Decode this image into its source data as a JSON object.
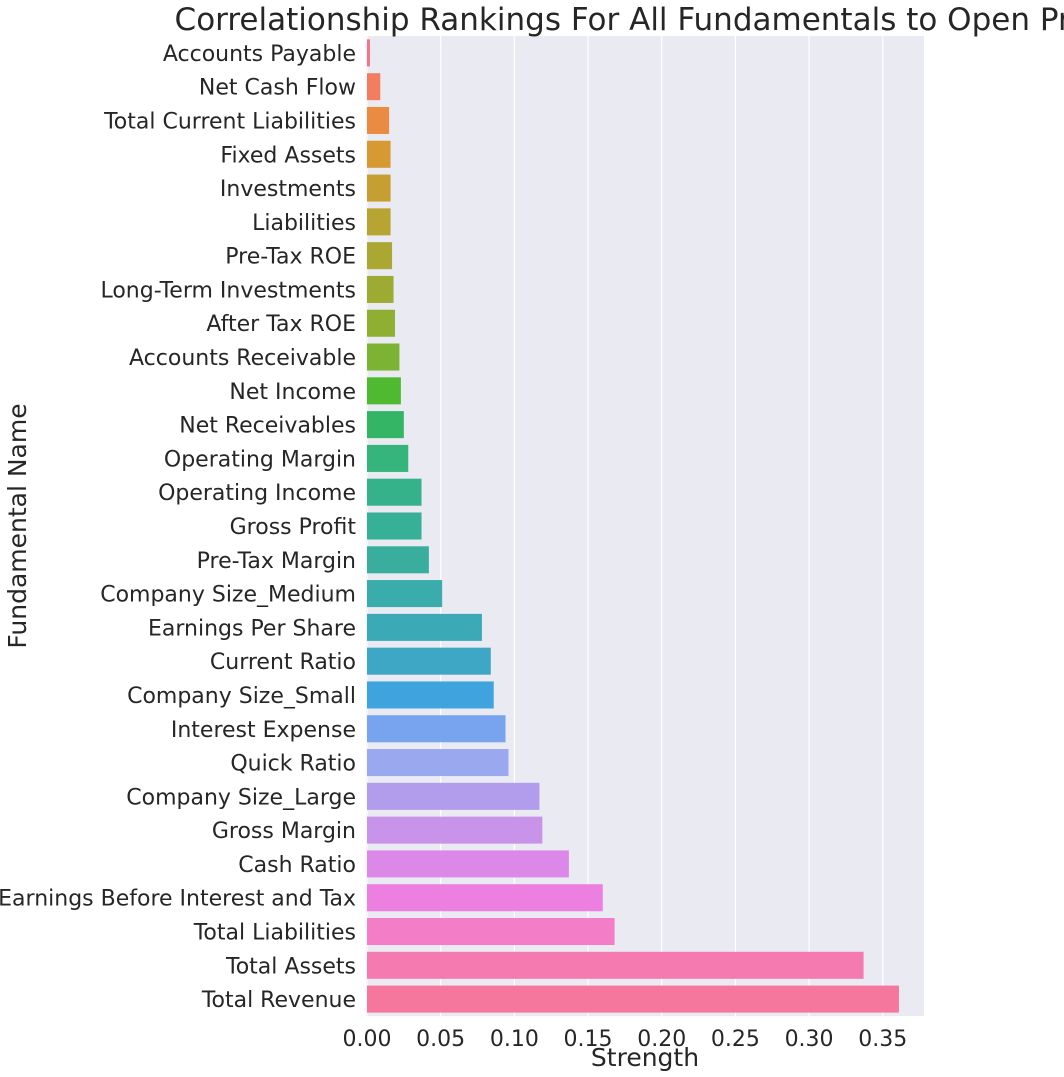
{
  "chart_data": {
    "type": "bar",
    "orientation": "horizontal",
    "title": "Correlationship Rankings For All Fundamentals to Open Price",
    "xlabel": "Strength",
    "ylabel": "Fundamental Name",
    "xlim": [
      0,
      0.378
    ],
    "xticks": [
      "0.00",
      "0.05",
      "0.10",
      "0.15",
      "0.20",
      "0.25",
      "0.30",
      "0.35"
    ],
    "grid": true,
    "categories": [
      "Accounts Payable",
      "Net Cash Flow",
      "Total Current Liabilities",
      "Fixed Assets",
      "Investments",
      "Liabilities",
      "Pre-Tax ROE",
      "Long-Term Investments",
      "After Tax ROE",
      "Accounts Receivable",
      "Net Income",
      "Net Receivables",
      "Operating Margin",
      "Operating Income",
      "Gross Profit",
      "Pre-Tax Margin",
      "Company Size_Medium",
      "Earnings Per Share",
      "Current Ratio",
      "Company Size_Small",
      "Interest Expense",
      "Quick Ratio",
      "Company Size_Large",
      "Gross Margin",
      "Cash Ratio",
      "Earnings Before Interest and Tax",
      "Total Liabilities",
      "Total Assets",
      "Total Revenue"
    ],
    "values": [
      0.002,
      0.009,
      0.015,
      0.016,
      0.016,
      0.016,
      0.017,
      0.018,
      0.019,
      0.022,
      0.023,
      0.025,
      0.028,
      0.037,
      0.037,
      0.042,
      0.051,
      0.078,
      0.084,
      0.086,
      0.094,
      0.096,
      0.117,
      0.119,
      0.137,
      0.16,
      0.168,
      0.337,
      0.361
    ],
    "colors": [
      "#f77189",
      "#f27e5f",
      "#e98c41",
      "#d79a32",
      "#c69f32",
      "#b8a432",
      "#aaa832",
      "#9dab32",
      "#8eaf32",
      "#7cb332",
      "#4fb932",
      "#33b565",
      "#35b47c",
      "#36b28b",
      "#37b098",
      "#39ae9f",
      "#3aacab",
      "#3ba9b6",
      "#3da7c5",
      "#3fa3de",
      "#78a3ee",
      "#9aa8ef",
      "#b29ded",
      "#c794ea",
      "#dc88e9",
      "#ed7fe0",
      "#f37ec7",
      "#f47ab0",
      "#f5779d"
    ]
  }
}
